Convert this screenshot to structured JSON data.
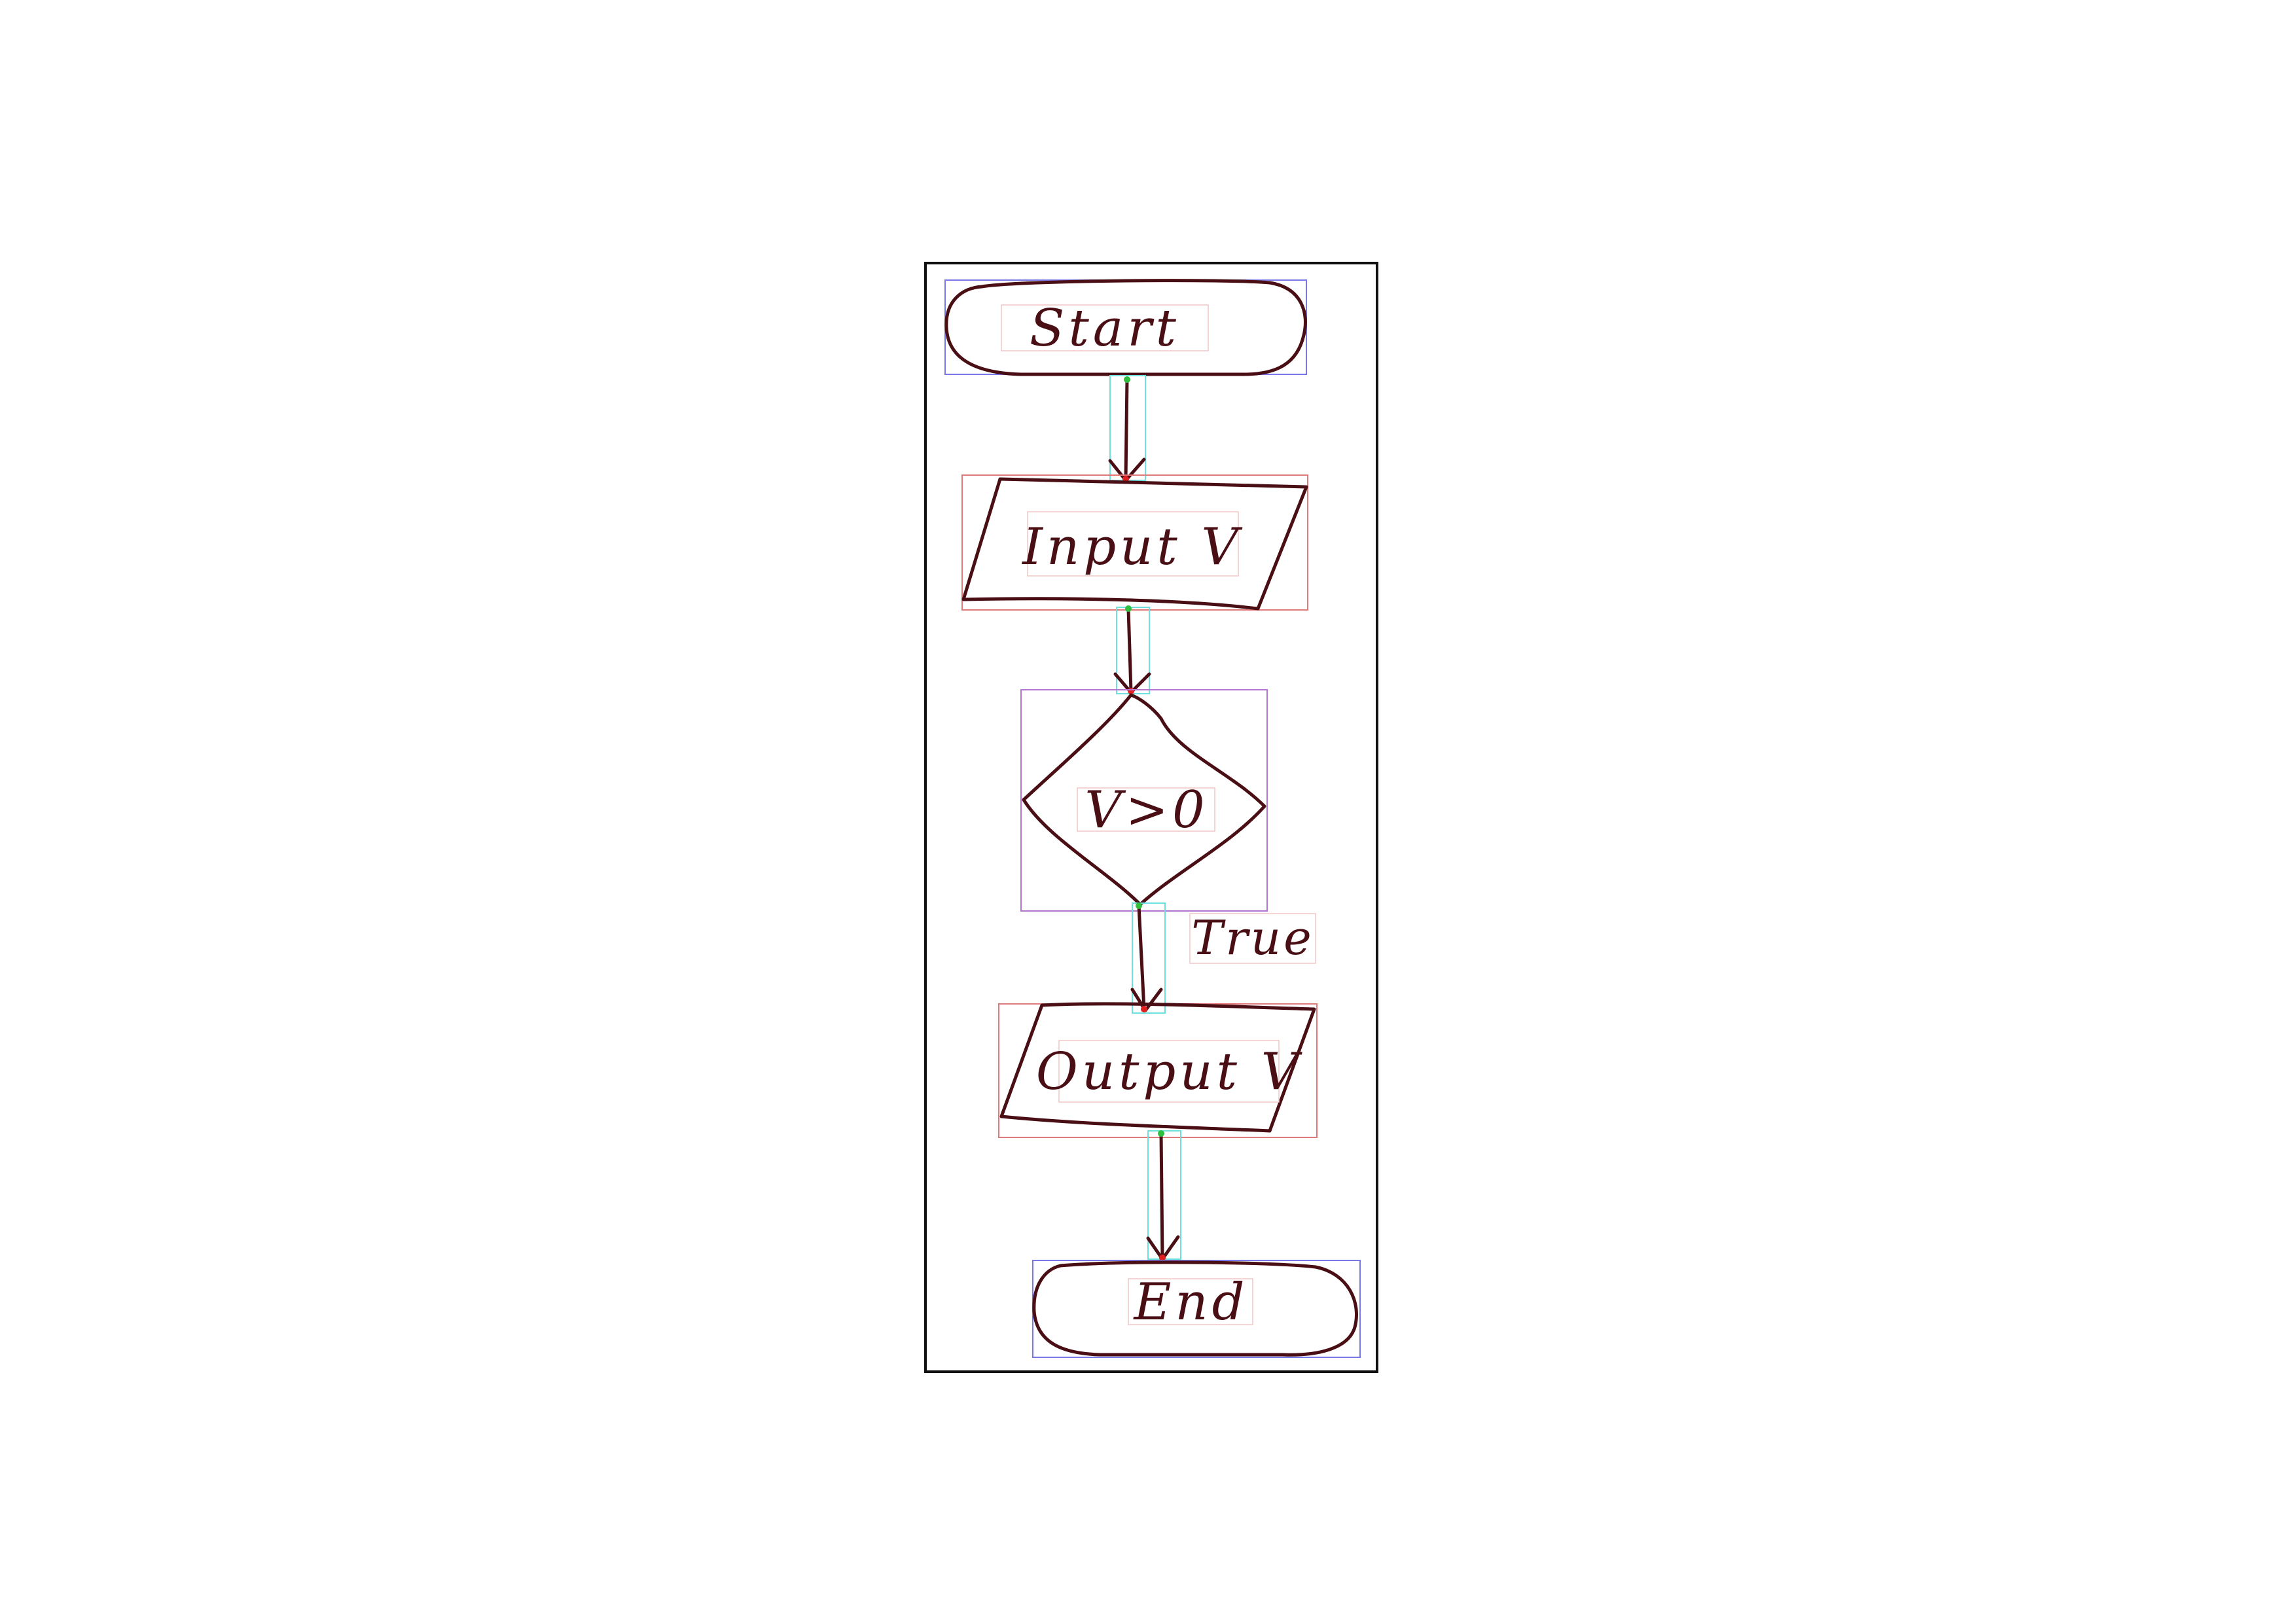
{
  "nodes": [
    {
      "id": "start",
      "shape": "terminator",
      "label": "Start"
    },
    {
      "id": "input",
      "shape": "parallelogram",
      "label": "Input V"
    },
    {
      "id": "decision",
      "shape": "diamond",
      "label": "V>0"
    },
    {
      "id": "output",
      "shape": "parallelogram",
      "label": "Output V"
    },
    {
      "id": "end",
      "shape": "terminator",
      "label": "End"
    }
  ],
  "edges": [
    {
      "from": "start",
      "to": "input",
      "label": ""
    },
    {
      "from": "input",
      "to": "decision",
      "label": ""
    },
    {
      "from": "decision",
      "to": "output",
      "label": "True"
    },
    {
      "from": "output",
      "to": "end",
      "label": ""
    }
  ],
  "colors": {
    "ink": "#4a0f14",
    "frame": "#111111",
    "terminator_box": "#7878e8",
    "io_box": "#e07a7a",
    "decision_box": "#b474d0",
    "arrow_box": "#6fe0e0"
  }
}
